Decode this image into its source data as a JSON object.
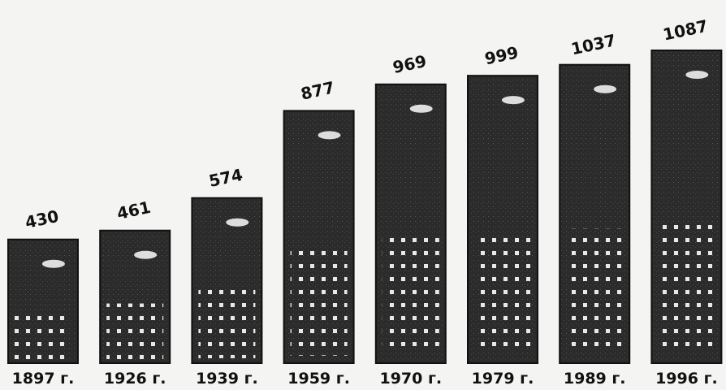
{
  "chart_data": {
    "type": "pictogram-bar",
    "categories": [
      "1897 г.",
      "1926 г.",
      "1939 г.",
      "1959 г.",
      "1970 г.",
      "1979 г.",
      "1989 г.",
      "1996 г."
    ],
    "values": [
      430,
      461,
      574,
      877,
      969,
      999,
      1037,
      1087
    ],
    "color": "#2b2b2b"
  }
}
